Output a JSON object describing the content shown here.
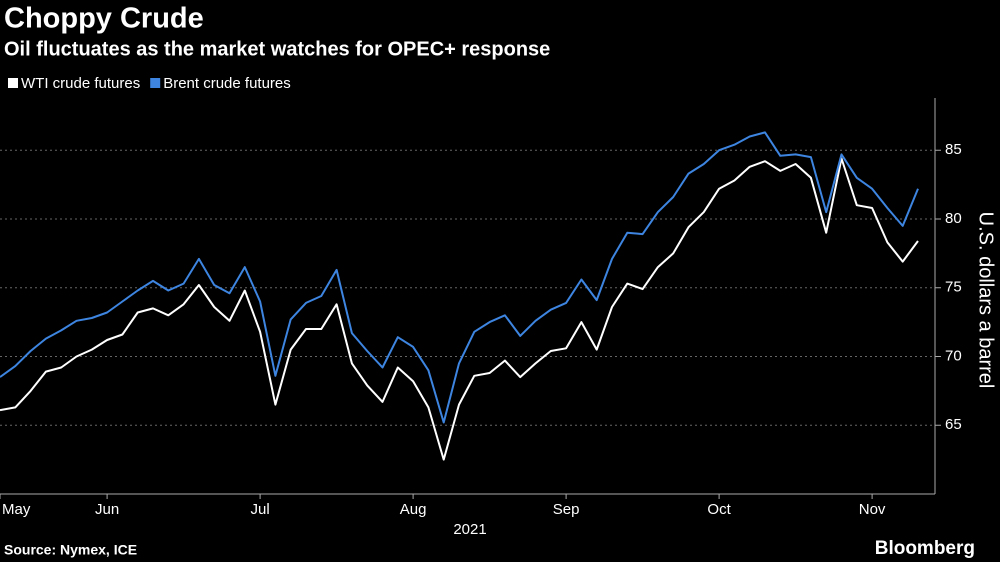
{
  "chart_data": {
    "type": "line",
    "title": "Choppy Crude",
    "subtitle": "Oil fluctuates as the market watches for OPEC+ response",
    "x_label": "2021",
    "y_label": "U.S. dollars a barrel",
    "source": "Source: Nymex, ICE",
    "brand": "Bloomberg",
    "categories": [
      "May",
      null,
      null,
      null,
      null,
      null,
      null,
      "Jun",
      null,
      null,
      null,
      null,
      null,
      null,
      null,
      null,
      null,
      "Jul",
      null,
      null,
      null,
      null,
      null,
      null,
      null,
      null,
      null,
      "Aug",
      null,
      null,
      null,
      null,
      null,
      null,
      null,
      null,
      null,
      "Sep",
      null,
      null,
      null,
      null,
      null,
      null,
      null,
      null,
      null,
      "Oct",
      null,
      null,
      null,
      null,
      null,
      null,
      null,
      null,
      null,
      "Nov",
      null,
      null,
      null
    ],
    "series": [
      {
        "name": "WTI crude futures",
        "color": "#ffffff",
        "values": [
          66.1,
          66.3,
          67.5,
          68.9,
          69.2,
          70.0,
          70.5,
          71.2,
          71.6,
          73.2,
          73.5,
          73.0,
          73.8,
          75.2,
          73.6,
          72.6,
          74.8,
          71.8,
          66.5,
          70.5,
          72.0,
          72.0,
          73.8,
          69.5,
          67.9,
          66.7,
          69.2,
          68.2,
          66.3,
          62.5,
          66.5,
          68.6,
          68.8,
          69.7,
          68.5,
          69.5,
          70.4,
          70.6,
          72.5,
          70.5,
          73.6,
          75.3,
          74.9,
          76.5,
          77.5,
          79.4,
          80.5,
          82.2,
          82.8,
          83.8,
          84.2,
          83.5,
          84.0,
          83.0,
          79.0,
          84.4,
          81.0,
          80.8,
          78.3,
          76.9,
          78.4
        ]
      },
      {
        "name": "Brent crude futures",
        "color": "#3d85e0",
        "values": [
          68.5,
          69.3,
          70.4,
          71.3,
          71.9,
          72.6,
          72.8,
          73.2,
          74.0,
          74.8,
          75.5,
          74.8,
          75.3,
          77.1,
          75.2,
          74.6,
          76.5,
          74.0,
          68.6,
          72.7,
          73.9,
          74.4,
          76.3,
          71.7,
          70.4,
          69.2,
          71.4,
          70.7,
          69.0,
          65.2,
          69.5,
          71.8,
          72.5,
          73.0,
          71.5,
          72.6,
          73.4,
          73.9,
          75.6,
          74.1,
          77.1,
          79.0,
          78.9,
          80.5,
          81.6,
          83.3,
          84.0,
          85.0,
          85.4,
          86.0,
          86.3,
          84.6,
          84.7,
          84.5,
          80.5,
          84.7,
          83.0,
          82.2,
          80.8,
          79.5,
          82.2
        ]
      }
    ],
    "ylim": [
      60,
      88.8
    ],
    "yticks": [
      65,
      70,
      75,
      80,
      85
    ],
    "grid": true
  }
}
